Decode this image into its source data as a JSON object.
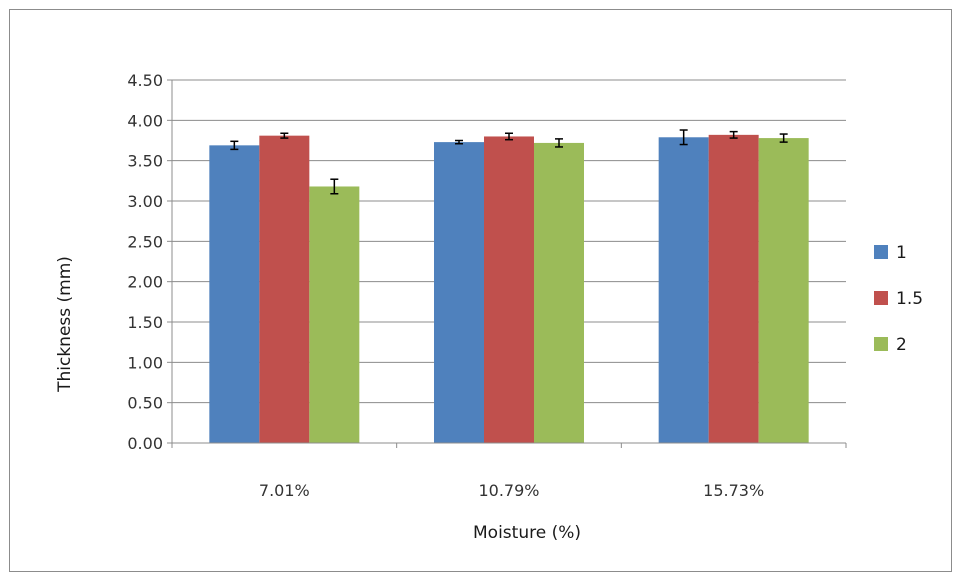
{
  "chart_data": {
    "type": "bar",
    "xlabel": "Moisture (%)",
    "ylabel": "Thickness (mm)",
    "ylim": [
      0,
      4.5
    ],
    "yticks": [
      "0.00",
      "0.50",
      "1.00",
      "1.50",
      "2.00",
      "2.50",
      "3.00",
      "3.50",
      "4.00",
      "4.50"
    ],
    "categories": [
      "7.01%",
      "10.79%",
      "15.73%"
    ],
    "grid": true,
    "legend_position": "right",
    "series": [
      {
        "name": "1",
        "color": "#4F81BD",
        "values": [
          3.69,
          3.73,
          3.79
        ],
        "errors": [
          0.05,
          0.02,
          0.09
        ]
      },
      {
        "name": "1.5",
        "color": "#C0504D",
        "values": [
          3.81,
          3.8,
          3.82
        ],
        "errors": [
          0.03,
          0.04,
          0.04
        ]
      },
      {
        "name": "2",
        "color": "#9BBB59",
        "values": [
          3.18,
          3.72,
          3.78
        ],
        "errors": [
          0.09,
          0.05,
          0.05
        ]
      }
    ]
  }
}
